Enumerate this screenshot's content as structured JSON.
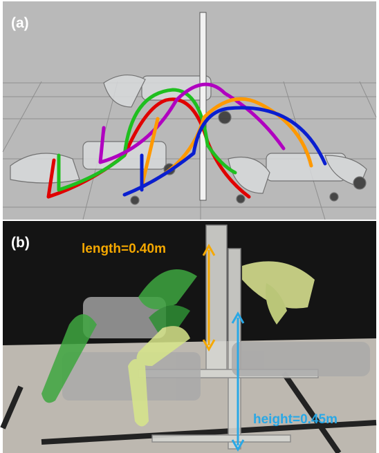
{
  "panels": [
    {
      "label": "(a)"
    },
    {
      "label": "(b)",
      "annotations": [
        "length=0.40m",
        "height=0.45m"
      ]
    }
  ]
}
